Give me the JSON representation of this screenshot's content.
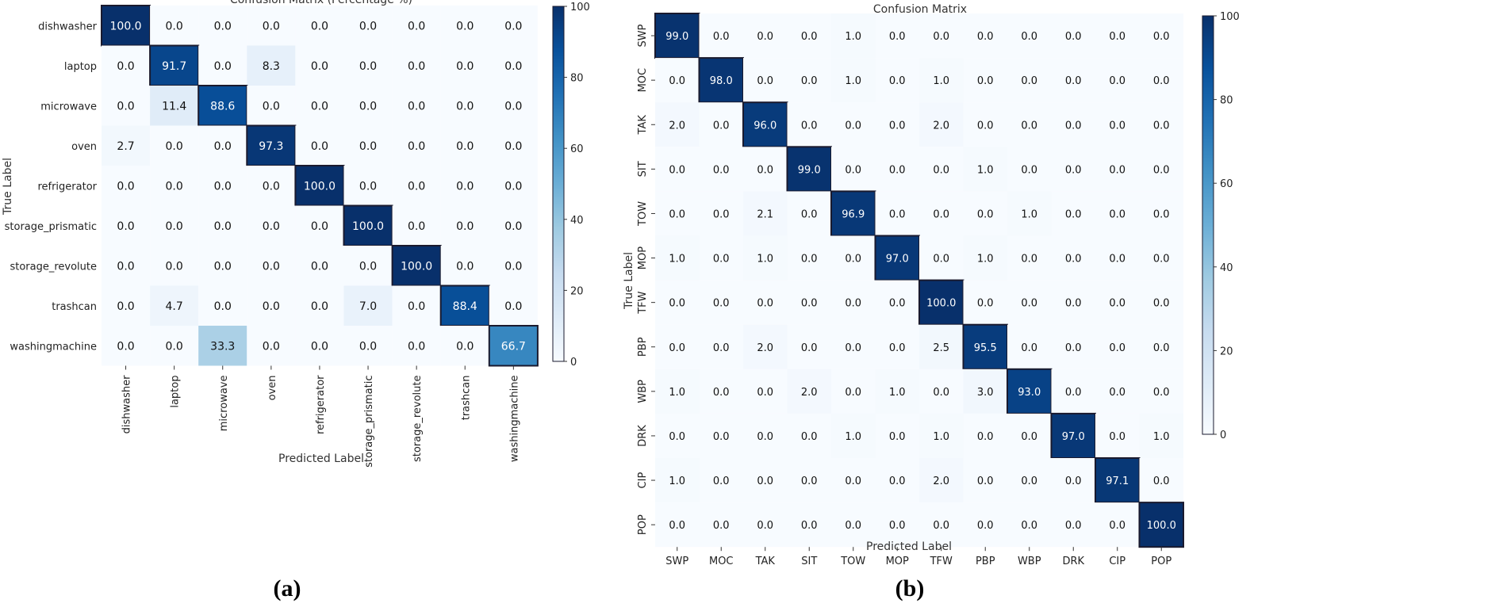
{
  "chart_data": [
    {
      "type": "heatmap",
      "title": "Confusion Matrix (Percentage %)",
      "subfigure_label": "(a)",
      "xlabel": "Predicted Label",
      "ylabel": "True Label",
      "categories": [
        "dishwasher",
        "laptop",
        "microwave",
        "oven",
        "refrigerator",
        "storage_prismatic",
        "storage_revolute",
        "trashcan",
        "washingmachine"
      ],
      "values": [
        [
          100.0,
          0.0,
          0.0,
          0.0,
          0.0,
          0.0,
          0.0,
          0.0,
          0.0
        ],
        [
          0.0,
          91.7,
          0.0,
          8.3,
          0.0,
          0.0,
          0.0,
          0.0,
          0.0
        ],
        [
          0.0,
          11.4,
          88.6,
          0.0,
          0.0,
          0.0,
          0.0,
          0.0,
          0.0
        ],
        [
          2.7,
          0.0,
          0.0,
          97.3,
          0.0,
          0.0,
          0.0,
          0.0,
          0.0
        ],
        [
          0.0,
          0.0,
          0.0,
          0.0,
          100.0,
          0.0,
          0.0,
          0.0,
          0.0
        ],
        [
          0.0,
          0.0,
          0.0,
          0.0,
          0.0,
          100.0,
          0.0,
          0.0,
          0.0
        ],
        [
          0.0,
          0.0,
          0.0,
          0.0,
          0.0,
          0.0,
          100.0,
          0.0,
          0.0
        ],
        [
          0.0,
          4.7,
          0.0,
          0.0,
          0.0,
          7.0,
          0.0,
          88.4,
          0.0
        ],
        [
          0.0,
          0.0,
          33.3,
          0.0,
          0.0,
          0.0,
          0.0,
          0.0,
          66.7
        ]
      ],
      "colorbar": {
        "colormap": "Blues",
        "range": [
          0,
          100
        ],
        "ticks": [
          "0",
          "20",
          "40",
          "60",
          "80",
          "100"
        ]
      }
    },
    {
      "type": "heatmap",
      "title": "Confusion Matrix",
      "subfigure_label": "(b)",
      "xlabel": "Predicted Label",
      "ylabel": "True Label",
      "categories": [
        "SWP",
        "MOC",
        "TAK",
        "SIT",
        "TOW",
        "MOP",
        "TFW",
        "PBP",
        "WBP",
        "DRK",
        "CIP",
        "POP"
      ],
      "values": [
        [
          99.0,
          0.0,
          0.0,
          0.0,
          1.0,
          0.0,
          0.0,
          0.0,
          0.0,
          0.0,
          0.0,
          0.0
        ],
        [
          0.0,
          98.0,
          0.0,
          0.0,
          1.0,
          0.0,
          1.0,
          0.0,
          0.0,
          0.0,
          0.0,
          0.0
        ],
        [
          2.0,
          0.0,
          96.0,
          0.0,
          0.0,
          0.0,
          2.0,
          0.0,
          0.0,
          0.0,
          0.0,
          0.0
        ],
        [
          0.0,
          0.0,
          0.0,
          99.0,
          0.0,
          0.0,
          0.0,
          1.0,
          0.0,
          0.0,
          0.0,
          0.0
        ],
        [
          0.0,
          0.0,
          2.1,
          0.0,
          96.9,
          0.0,
          0.0,
          0.0,
          1.0,
          0.0,
          0.0,
          0.0
        ],
        [
          1.0,
          0.0,
          1.0,
          0.0,
          0.0,
          97.0,
          0.0,
          1.0,
          0.0,
          0.0,
          0.0,
          0.0
        ],
        [
          0.0,
          0.0,
          0.0,
          0.0,
          0.0,
          0.0,
          100.0,
          0.0,
          0.0,
          0.0,
          0.0,
          0.0
        ],
        [
          0.0,
          0.0,
          2.0,
          0.0,
          0.0,
          0.0,
          2.5,
          95.5,
          0.0,
          0.0,
          0.0,
          0.0
        ],
        [
          1.0,
          0.0,
          0.0,
          2.0,
          0.0,
          1.0,
          0.0,
          3.0,
          93.0,
          0.0,
          0.0,
          0.0
        ],
        [
          0.0,
          0.0,
          0.0,
          0.0,
          1.0,
          0.0,
          1.0,
          0.0,
          0.0,
          97.0,
          0.0,
          1.0
        ],
        [
          1.0,
          0.0,
          0.0,
          0.0,
          0.0,
          0.0,
          2.0,
          0.0,
          0.0,
          0.0,
          97.1,
          0.0
        ],
        [
          0.0,
          0.0,
          0.0,
          0.0,
          0.0,
          0.0,
          0.0,
          0.0,
          0.0,
          0.0,
          0.0,
          100.0
        ]
      ],
      "colorbar": {
        "colormap": "Blues",
        "range": [
          0,
          100
        ],
        "ticks": [
          "0",
          "20",
          "40",
          "60",
          "80",
          "100"
        ]
      }
    }
  ]
}
